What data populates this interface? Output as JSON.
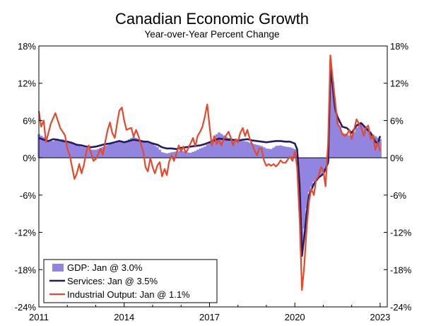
{
  "chart_data": {
    "type": "bar+line",
    "title": "Canadian Economic Growth",
    "subtitle": "Year-over-Year Percent Change",
    "xlabel": "",
    "ylabel": "",
    "ylim": [
      -24,
      18
    ],
    "y_ticks": [
      "18%",
      "12%",
      "6%",
      "0%",
      "-6%",
      "-12%",
      "-18%",
      "-24%"
    ],
    "y_tick_values": [
      18,
      12,
      6,
      0,
      -6,
      -12,
      -18,
      -24
    ],
    "x_ticks": [
      "2011",
      "2014",
      "2017",
      "2020",
      "2023"
    ],
    "x_tick_values": [
      2011.0,
      2014.0,
      2017.0,
      2020.0,
      2023.0
    ],
    "xlim": [
      2011.0,
      2023.25
    ],
    "grid": false,
    "legend_position": "bottom-left",
    "colors": {
      "gdp": "#9285e0",
      "services": "#231d5e",
      "industrial": "#e2492d"
    },
    "series": [
      {
        "name": "GDP",
        "legend": "GDP: Jan @ 3.0%",
        "type": "bar",
        "knots": [
          [
            2011.0,
            3.8
          ],
          [
            2011.17,
            3.3
          ],
          [
            2011.33,
            2.8
          ],
          [
            2011.5,
            2.7
          ],
          [
            2011.67,
            2.9
          ],
          [
            2011.83,
            3.0
          ],
          [
            2012.0,
            2.6
          ],
          [
            2012.17,
            2.3
          ],
          [
            2012.33,
            2.0
          ],
          [
            2012.5,
            1.8
          ],
          [
            2012.67,
            1.6
          ],
          [
            2012.83,
            1.3
          ],
          [
            2013.0,
            1.3
          ],
          [
            2013.17,
            1.6
          ],
          [
            2013.33,
            1.9
          ],
          [
            2013.5,
            2.2
          ],
          [
            2013.67,
            2.3
          ],
          [
            2013.83,
            2.6
          ],
          [
            2014.0,
            2.5
          ],
          [
            2014.17,
            3.0
          ],
          [
            2014.33,
            3.4
          ],
          [
            2014.5,
            3.0
          ],
          [
            2014.67,
            2.8
          ],
          [
            2014.83,
            2.7
          ],
          [
            2015.0,
            2.2
          ],
          [
            2015.17,
            1.7
          ],
          [
            2015.33,
            0.9
          ],
          [
            2015.5,
            0.7
          ],
          [
            2015.67,
            0.9
          ],
          [
            2015.83,
            1.0
          ],
          [
            2016.0,
            1.2
          ],
          [
            2016.17,
            0.9
          ],
          [
            2016.33,
            0.8
          ],
          [
            2016.5,
            1.1
          ],
          [
            2016.67,
            1.5
          ],
          [
            2016.83,
            1.8
          ],
          [
            2017.0,
            2.5
          ],
          [
            2017.17,
            3.5
          ],
          [
            2017.33,
            4.1
          ],
          [
            2017.5,
            3.6
          ],
          [
            2017.67,
            3.2
          ],
          [
            2017.83,
            3.0
          ],
          [
            2018.0,
            2.8
          ],
          [
            2018.17,
            2.7
          ],
          [
            2018.33,
            2.6
          ],
          [
            2018.5,
            2.3
          ],
          [
            2018.67,
            2.1
          ],
          [
            2018.83,
            1.9
          ],
          [
            2019.0,
            1.5
          ],
          [
            2019.17,
            1.4
          ],
          [
            2019.33,
            1.9
          ],
          [
            2019.5,
            2.0
          ],
          [
            2019.67,
            1.8
          ],
          [
            2019.83,
            1.7
          ],
          [
            2020.0,
            1.4
          ],
          [
            2020.08,
            0.8
          ],
          [
            2020.17,
            -6.5
          ],
          [
            2020.25,
            -14.5
          ],
          [
            2020.33,
            -11.5
          ],
          [
            2020.42,
            -8.0
          ],
          [
            2020.5,
            -5.5
          ],
          [
            2020.67,
            -3.8
          ],
          [
            2020.83,
            -3.0
          ],
          [
            2021.0,
            -2.4
          ],
          [
            2021.17,
            -0.5
          ],
          [
            2021.25,
            15.8
          ],
          [
            2021.33,
            12.5
          ],
          [
            2021.42,
            7.5
          ],
          [
            2021.5,
            6.0
          ],
          [
            2021.67,
            4.0
          ],
          [
            2021.83,
            3.8
          ],
          [
            2022.0,
            3.4
          ],
          [
            2022.17,
            4.9
          ],
          [
            2022.33,
            5.5
          ],
          [
            2022.5,
            4.6
          ],
          [
            2022.67,
            4.0
          ],
          [
            2022.83,
            3.5
          ],
          [
            2023.0,
            3.0
          ]
        ]
      },
      {
        "name": "Services",
        "legend": "Services: Jan @ 3.5%",
        "type": "line",
        "knots": [
          [
            2011.0,
            3.2
          ],
          [
            2011.17,
            2.9
          ],
          [
            2011.33,
            2.7
          ],
          [
            2011.5,
            3.0
          ],
          [
            2011.67,
            2.9
          ],
          [
            2011.83,
            2.7
          ],
          [
            2012.0,
            2.6
          ],
          [
            2012.17,
            2.4
          ],
          [
            2012.33,
            2.1
          ],
          [
            2012.5,
            2.0
          ],
          [
            2012.67,
            1.8
          ],
          [
            2012.83,
            1.7
          ],
          [
            2013.0,
            1.8
          ],
          [
            2013.17,
            2.0
          ],
          [
            2013.33,
            2.2
          ],
          [
            2013.5,
            2.3
          ],
          [
            2013.67,
            2.5
          ],
          [
            2013.83,
            2.7
          ],
          [
            2014.0,
            2.5
          ],
          [
            2014.17,
            2.7
          ],
          [
            2014.33,
            2.9
          ],
          [
            2014.5,
            2.8
          ],
          [
            2014.67,
            2.6
          ],
          [
            2014.83,
            2.6
          ],
          [
            2015.0,
            2.3
          ],
          [
            2015.17,
            2.1
          ],
          [
            2015.33,
            1.7
          ],
          [
            2015.5,
            1.5
          ],
          [
            2015.67,
            1.5
          ],
          [
            2015.83,
            1.4
          ],
          [
            2016.0,
            1.6
          ],
          [
            2016.17,
            1.7
          ],
          [
            2016.33,
            1.8
          ],
          [
            2016.5,
            1.9
          ],
          [
            2016.67,
            2.0
          ],
          [
            2016.83,
            2.2
          ],
          [
            2017.0,
            2.5
          ],
          [
            2017.17,
            2.8
          ],
          [
            2017.33,
            3.1
          ],
          [
            2017.5,
            3.0
          ],
          [
            2017.67,
            2.9
          ],
          [
            2017.83,
            2.9
          ],
          [
            2018.0,
            2.8
          ],
          [
            2018.17,
            2.9
          ],
          [
            2018.33,
            3.0
          ],
          [
            2018.5,
            2.8
          ],
          [
            2018.67,
            2.7
          ],
          [
            2018.83,
            2.6
          ],
          [
            2019.0,
            2.5
          ],
          [
            2019.17,
            2.6
          ],
          [
            2019.33,
            2.7
          ],
          [
            2019.5,
            2.7
          ],
          [
            2019.67,
            2.6
          ],
          [
            2019.83,
            2.6
          ],
          [
            2020.0,
            2.3
          ],
          [
            2020.08,
            1.4
          ],
          [
            2020.17,
            -4.5
          ],
          [
            2020.25,
            -15.8
          ],
          [
            2020.33,
            -12.8
          ],
          [
            2020.42,
            -8.8
          ],
          [
            2020.5,
            -6.0
          ],
          [
            2020.67,
            -4.2
          ],
          [
            2020.83,
            -3.2
          ],
          [
            2021.0,
            -2.6
          ],
          [
            2021.17,
            -0.8
          ],
          [
            2021.25,
            14.2
          ],
          [
            2021.33,
            11.6
          ],
          [
            2021.42,
            7.8
          ],
          [
            2021.5,
            6.6
          ],
          [
            2021.67,
            5.0
          ],
          [
            2021.83,
            4.8
          ],
          [
            2022.0,
            4.0
          ],
          [
            2022.17,
            5.2
          ],
          [
            2022.33,
            5.6
          ],
          [
            2022.5,
            4.8
          ],
          [
            2022.67,
            4.0
          ],
          [
            2022.83,
            2.6
          ],
          [
            2022.92,
            2.3
          ],
          [
            2023.0,
            3.5
          ]
        ]
      },
      {
        "name": "Industrial Output",
        "legend": "Industrial Output: Jan @ 1.1%",
        "type": "line",
        "knots": [
          [
            2011.0,
            7.5
          ],
          [
            2011.08,
            5.0
          ],
          [
            2011.17,
            6.0
          ],
          [
            2011.25,
            2.5
          ],
          [
            2011.42,
            5.5
          ],
          [
            2011.58,
            7.2
          ],
          [
            2011.75,
            4.8
          ],
          [
            2011.92,
            3.6
          ],
          [
            2012.0,
            1.5
          ],
          [
            2012.08,
            0.5
          ],
          [
            2012.17,
            -1.5
          ],
          [
            2012.25,
            -3.4
          ],
          [
            2012.33,
            -2.6
          ],
          [
            2012.42,
            -1.0
          ],
          [
            2012.5,
            -2.5
          ],
          [
            2012.58,
            -1.2
          ],
          [
            2012.67,
            1.0
          ],
          [
            2012.75,
            2.0
          ],
          [
            2012.83,
            0.8
          ],
          [
            2012.92,
            -0.5
          ],
          [
            2013.0,
            -0.2
          ],
          [
            2013.08,
            0.5
          ],
          [
            2013.17,
            1.5
          ],
          [
            2013.25,
            0.5
          ],
          [
            2013.33,
            2.5
          ],
          [
            2013.42,
            4.5
          ],
          [
            2013.5,
            5.7
          ],
          [
            2013.58,
            4.0
          ],
          [
            2013.67,
            3.2
          ],
          [
            2013.75,
            5.5
          ],
          [
            2013.83,
            7.6
          ],
          [
            2013.92,
            8.1
          ],
          [
            2014.0,
            6.0
          ],
          [
            2014.08,
            4.5
          ],
          [
            2014.17,
            4.7
          ],
          [
            2014.25,
            4.8
          ],
          [
            2014.33,
            3.4
          ],
          [
            2014.42,
            4.5
          ],
          [
            2014.5,
            3.5
          ],
          [
            2014.67,
            1.0
          ],
          [
            2014.75,
            -1.5
          ],
          [
            2014.83,
            -2.2
          ],
          [
            2014.92,
            0.0
          ],
          [
            2015.0,
            -1.5
          ],
          [
            2015.08,
            -2.5
          ],
          [
            2015.17,
            -1.2
          ],
          [
            2015.25,
            -0.7
          ],
          [
            2015.33,
            -3.0
          ],
          [
            2015.42,
            -1.8
          ],
          [
            2015.5,
            -2.8
          ],
          [
            2015.58,
            -0.6
          ],
          [
            2015.67,
            0.4
          ],
          [
            2015.75,
            -0.5
          ],
          [
            2015.83,
            0.6
          ],
          [
            2015.92,
            2.0
          ],
          [
            2016.0,
            1.0
          ],
          [
            2016.08,
            1.8
          ],
          [
            2016.17,
            0.8
          ],
          [
            2016.25,
            1.5
          ],
          [
            2016.42,
            3.2
          ],
          [
            2016.5,
            1.8
          ],
          [
            2016.58,
            3.5
          ],
          [
            2016.67,
            4.2
          ],
          [
            2016.75,
            5.0
          ],
          [
            2016.83,
            6.5
          ],
          [
            2016.92,
            8.6
          ],
          [
            2017.0,
            5.2
          ],
          [
            2017.08,
            2.0
          ],
          [
            2017.17,
            3.5
          ],
          [
            2017.25,
            2.2
          ],
          [
            2017.33,
            2.8
          ],
          [
            2017.42,
            2.0
          ],
          [
            2017.5,
            3.0
          ],
          [
            2017.58,
            3.6
          ],
          [
            2017.67,
            4.2
          ],
          [
            2017.75,
            3.2
          ],
          [
            2017.83,
            2.0
          ],
          [
            2017.92,
            3.0
          ],
          [
            2018.0,
            2.5
          ],
          [
            2018.08,
            4.0
          ],
          [
            2018.17,
            4.8
          ],
          [
            2018.25,
            3.5
          ],
          [
            2018.33,
            4.5
          ],
          [
            2018.42,
            3.0
          ],
          [
            2018.5,
            2.2
          ],
          [
            2018.58,
            1.2
          ],
          [
            2018.67,
            0.4
          ],
          [
            2018.75,
            1.5
          ],
          [
            2018.83,
            1.5
          ],
          [
            2018.92,
            -0.5
          ],
          [
            2019.0,
            -1.3
          ],
          [
            2019.08,
            -1.0
          ],
          [
            2019.17,
            -1.3
          ],
          [
            2019.25,
            -1.0
          ],
          [
            2019.33,
            -1.4
          ],
          [
            2019.42,
            -1.0
          ],
          [
            2019.5,
            -0.4
          ],
          [
            2019.58,
            -0.8
          ],
          [
            2019.67,
            -0.8
          ],
          [
            2019.75,
            -0.3
          ],
          [
            2019.83,
            0.2
          ],
          [
            2019.92,
            -0.5
          ],
          [
            2020.0,
            1.0
          ],
          [
            2020.08,
            -1.5
          ],
          [
            2020.17,
            -10.0
          ],
          [
            2020.25,
            -21.3
          ],
          [
            2020.33,
            -17.5
          ],
          [
            2020.42,
            -11.0
          ],
          [
            2020.5,
            -7.0
          ],
          [
            2020.58,
            -5.0
          ],
          [
            2020.67,
            -6.0
          ],
          [
            2020.75,
            -3.5
          ],
          [
            2020.83,
            -3.0
          ],
          [
            2020.92,
            -1.5
          ],
          [
            2021.0,
            -2.0
          ],
          [
            2021.08,
            -4.6
          ],
          [
            2021.17,
            2.5
          ],
          [
            2021.25,
            16.5
          ],
          [
            2021.33,
            12.8
          ],
          [
            2021.42,
            9.0
          ],
          [
            2021.5,
            5.5
          ],
          [
            2021.58,
            5.0
          ],
          [
            2021.67,
            3.8
          ],
          [
            2021.75,
            3.5
          ],
          [
            2021.83,
            3.8
          ],
          [
            2021.92,
            4.5
          ],
          [
            2022.0,
            3.0
          ],
          [
            2022.08,
            4.5
          ],
          [
            2022.17,
            6.2
          ],
          [
            2022.25,
            5.5
          ],
          [
            2022.33,
            5.0
          ],
          [
            2022.42,
            3.5
          ],
          [
            2022.5,
            4.8
          ],
          [
            2022.58,
            5.2
          ],
          [
            2022.67,
            3.0
          ],
          [
            2022.75,
            3.6
          ],
          [
            2022.83,
            1.3
          ],
          [
            2022.92,
            2.5
          ],
          [
            2023.0,
            1.1
          ]
        ]
      }
    ]
  }
}
